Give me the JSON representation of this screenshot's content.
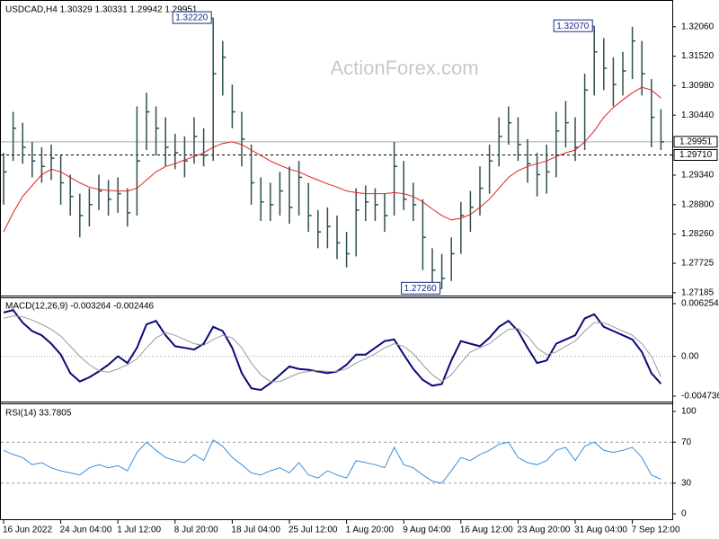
{
  "chart_data": [
    {
      "type": "ohlc",
      "title": "USDCAD,H4  1.30329 1.30331 1.29942 1.29951",
      "watermark": "ActionForex.com",
      "color": "#2f4f4f",
      "categories": [
        "16 Jun 2022",
        null,
        null,
        null,
        null,
        null,
        "24 Jun 04:00",
        null,
        null,
        null,
        null,
        null,
        "1 Jul 12:00",
        null,
        null,
        null,
        null,
        null,
        "8 Jul 20:00",
        null,
        null,
        null,
        null,
        null,
        "18 Jul 04:00",
        null,
        null,
        null,
        null,
        null,
        "25 Jul 12:00",
        null,
        null,
        null,
        null,
        null,
        "1 Aug 20:00",
        null,
        null,
        null,
        null,
        null,
        "9 Aug 04:00",
        null,
        null,
        null,
        null,
        null,
        "16 Aug 12:00",
        null,
        null,
        null,
        null,
        null,
        "23 Aug 20:00",
        null,
        null,
        null,
        null,
        null,
        "31 Aug 04:00",
        null,
        null,
        null,
        null,
        null,
        "7 Sep 12:00",
        null,
        null,
        null
      ],
      "high": [
        1.2975,
        1.305,
        1.303,
        1.2995,
        1.2985,
        1.299,
        1.297,
        1.2935,
        1.29,
        1.291,
        1.2935,
        1.2925,
        1.293,
        1.291,
        1.306,
        1.3085,
        1.306,
        1.304,
        1.301,
        1.3005,
        1.304,
        1.302,
        1.3222,
        1.318,
        1.31,
        1.305,
        1.299,
        1.293,
        1.292,
        1.294,
        1.295,
        1.296,
        1.292,
        1.287,
        1.2875,
        1.286,
        1.283,
        1.291,
        1.2915,
        1.291,
        1.29,
        1.2995,
        1.296,
        1.292,
        1.289,
        1.28,
        1.279,
        1.282,
        1.2885,
        1.2905,
        1.295,
        1.299,
        1.304,
        1.306,
        1.304,
        1.3,
        1.2975,
        1.299,
        1.305,
        1.307,
        1.304,
        1.312,
        1.3207,
        1.3185,
        1.315,
        1.316,
        1.3206,
        1.318,
        1.311,
        1.3055
      ],
      "low": [
        1.288,
        1.296,
        1.2955,
        1.293,
        1.292,
        1.2925,
        1.288,
        1.286,
        1.282,
        1.284,
        1.287,
        1.286,
        1.2865,
        1.284,
        1.286,
        1.298,
        1.297,
        1.295,
        1.2945,
        1.293,
        1.2955,
        1.295,
        1.296,
        1.308,
        1.302,
        1.295,
        1.288,
        1.285,
        1.285,
        1.286,
        1.2845,
        1.286,
        1.283,
        1.28,
        1.28,
        1.278,
        1.2765,
        1.2785,
        1.285,
        1.285,
        1.283,
        1.286,
        1.287,
        1.285,
        1.276,
        1.273,
        1.2726,
        1.274,
        1.279,
        1.283,
        1.286,
        1.29,
        1.295,
        1.299,
        1.296,
        1.292,
        1.2895,
        1.29,
        1.293,
        1.2985,
        1.296,
        1.298,
        1.308,
        1.309,
        1.306,
        1.308,
        1.311,
        1.308,
        1.2985,
        1.298
      ],
      "close": [
        1.294,
        1.302,
        1.2985,
        1.296,
        1.295,
        1.2965,
        1.292,
        1.2895,
        1.286,
        1.288,
        1.2905,
        1.289,
        1.29,
        1.2865,
        1.296,
        1.305,
        1.302,
        1.2985,
        1.2975,
        1.296,
        1.3005,
        1.297,
        1.312,
        1.315,
        1.305,
        1.3,
        1.292,
        1.2885,
        1.288,
        1.2905,
        1.2875,
        1.293,
        1.286,
        1.283,
        1.284,
        1.281,
        1.279,
        1.287,
        1.2885,
        1.288,
        1.286,
        1.295,
        1.289,
        1.288,
        1.282,
        1.276,
        1.2745,
        1.279,
        1.286,
        1.2875,
        1.291,
        1.296,
        1.3005,
        1.303,
        1.299,
        1.2955,
        1.2935,
        1.294,
        1.3015,
        1.303,
        1.2985,
        1.309,
        1.316,
        1.313,
        1.31,
        1.3125,
        1.318,
        1.312,
        1.304,
        1.29951
      ],
      "series": [
        {
          "color": "#e02020",
          "values": [
            1.283,
            1.2865,
            1.2895,
            1.2915,
            1.2935,
            1.2945,
            1.294,
            1.293,
            1.292,
            1.2912,
            1.2908,
            1.2906,
            1.2905,
            1.2905,
            1.291,
            1.2925,
            1.294,
            1.295,
            1.2955,
            1.2962,
            1.2968,
            1.2975,
            1.2985,
            1.2992,
            1.2995,
            1.299,
            1.298,
            1.297,
            1.296,
            1.2952,
            1.2945,
            1.294,
            1.2932,
            1.2925,
            1.2918,
            1.2912,
            1.2905,
            1.2902,
            1.29,
            1.29,
            1.29,
            1.2902,
            1.29,
            1.2895,
            1.2885,
            1.2872,
            1.286,
            1.2852,
            1.2855,
            1.2862,
            1.2875,
            1.289,
            1.291,
            1.293,
            1.2942,
            1.295,
            1.2955,
            1.296,
            1.2968,
            1.2975,
            1.298,
            1.2995,
            1.3015,
            1.304,
            1.3058,
            1.3072,
            1.3085,
            1.3095,
            1.309,
            1.3075
          ]
        }
      ],
      "ylim": [
        1.2715,
        1.3255
      ],
      "yticks": [
        {
          "value": 1.3206,
          "label": "1.32060"
        },
        {
          "value": 1.3152,
          "label": "1.31520"
        },
        {
          "value": 1.3098,
          "label": "1.30980"
        },
        {
          "value": 1.3044,
          "label": "1.30440"
        },
        {
          "value": 1.2934,
          "label": "1.29340"
        },
        {
          "value": 1.288,
          "label": "1.28800"
        },
        {
          "value": 1.2826,
          "label": "1.28260"
        },
        1.27725,
        1.27185
      ],
      "annotations": [
        {
          "value": 1.3222,
          "label": "1.32220"
        },
        {
          "value": 1.3207,
          "label": "1.32070"
        },
        {
          "value": 1.2726,
          "label": "1.27260"
        }
      ],
      "price_lines": [
        {
          "value": 1.29951,
          "label": "1.29951",
          "style": "solid"
        },
        {
          "value": 1.2971,
          "label": "1.29710",
          "style": "dashed"
        }
      ]
    },
    {
      "type": "line",
      "title": "MACD(12,26,9) -0.003264 -0.002446",
      "series": [
        {
          "color": "#0a0a78",
          "width": 2,
          "values": [
            0.0052,
            0.0055,
            0.004,
            0.003,
            0.0025,
            0.0015,
            0.0002,
            -0.002,
            -0.003,
            -0.0025,
            -0.0018,
            -0.001,
            0.0,
            -0.0008,
            0.001,
            0.0038,
            0.0042,
            0.0025,
            0.0012,
            0.001,
            0.0008,
            0.0015,
            0.0035,
            0.003,
            0.001,
            -0.002,
            -0.0038,
            -0.004,
            -0.0032,
            -0.0022,
            -0.0012,
            -0.0015,
            -0.0016,
            -0.0018,
            -0.002,
            -0.0018,
            -0.001,
            0.0002,
            0.0002,
            0.001,
            0.0018,
            0.002,
            0.0002,
            -0.0015,
            -0.0028,
            -0.0035,
            -0.0033,
            -0.0005,
            0.0018,
            0.0015,
            0.0012,
            0.0022,
            0.0035,
            0.0042,
            0.003,
            0.001,
            -0.0008,
            -0.0005,
            0.0015,
            0.002,
            0.0025,
            0.0045,
            0.005,
            0.0035,
            0.003,
            0.0025,
            0.002,
            0.0005,
            -0.002,
            -0.003264
          ]
        },
        {
          "color": "#9a9a9a",
          "width": 1,
          "values": [
            0.0045,
            0.0048,
            0.0047,
            0.0043,
            0.0038,
            0.0032,
            0.0024,
            0.0012,
            0.0,
            -0.001,
            -0.0017,
            -0.0019,
            -0.0015,
            -0.001,
            -0.0003,
            0.001,
            0.0022,
            0.0028,
            0.0025,
            0.002,
            0.0015,
            0.0013,
            0.002,
            0.0025,
            0.0022,
            0.001,
            -0.0008,
            -0.0022,
            -0.003,
            -0.003,
            -0.0025,
            -0.002,
            -0.0018,
            -0.0017,
            -0.0018,
            -0.0018,
            -0.0015,
            -0.0008,
            -0.0003,
            0.0003,
            0.001,
            0.0015,
            0.0012,
            0.0003,
            -0.001,
            -0.0022,
            -0.003,
            -0.0022,
            -0.0008,
            0.0005,
            0.001,
            0.0015,
            0.0024,
            0.0032,
            0.0033,
            0.0024,
            0.001,
            0.0002,
            0.0005,
            0.0012,
            0.0018,
            0.003,
            0.004,
            0.004,
            0.0035,
            0.003,
            0.0025,
            0.0015,
            0.0,
            -0.002446
          ]
        }
      ],
      "ylim": [
        -0.005376,
        0.006894
      ],
      "yticks": [
        0.006254,
        {
          "value": 0,
          "label": "0.00"
        },
        -0.004736
      ],
      "levels": [
        0
      ]
    },
    {
      "type": "line",
      "title": "RSI(14) 33.7805",
      "series": [
        {
          "color": "#3a8fe0",
          "width": 1,
          "values": [
            62,
            58,
            55,
            48,
            50,
            45,
            42,
            40,
            38,
            45,
            48,
            45,
            47,
            42,
            60,
            70,
            62,
            55,
            52,
            50,
            58,
            52,
            72,
            66,
            55,
            48,
            40,
            38,
            42,
            45,
            40,
            50,
            38,
            35,
            42,
            38,
            35,
            52,
            50,
            48,
            45,
            65,
            48,
            45,
            38,
            32,
            30,
            42,
            55,
            52,
            58,
            62,
            68,
            70,
            55,
            50,
            48,
            52,
            62,
            65,
            52,
            66,
            70,
            62,
            60,
            62,
            65,
            55,
            38,
            33.7805
          ]
        }
      ],
      "ylim": [
        -5.2,
        106.1
      ],
      "yticks": [
        100,
        70,
        30,
        0
      ],
      "levels": [
        70,
        30
      ]
    }
  ]
}
